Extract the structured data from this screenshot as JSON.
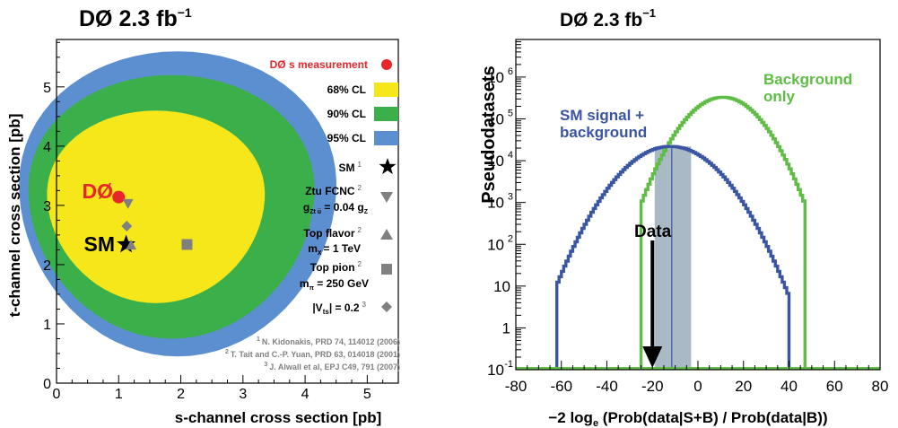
{
  "chart_data": [
    {
      "type": "scatter",
      "title": "DØ   2.3 fb⁻¹",
      "title_main": "DØ   2.3 fb",
      "title_sup": "−1",
      "xlabel": "s-channel cross section [pb]",
      "ylabel": "t-channel cross section [pb]",
      "xlim": [
        0,
        5.5
      ],
      "ylim": [
        0,
        5.8
      ],
      "xticks": [
        "0",
        "1",
        "2",
        "3",
        "4",
        "5"
      ],
      "yticks": [
        "0",
        "1",
        "2",
        "3",
        "4",
        "5"
      ],
      "contours": [
        {
          "name": "95% CL",
          "color": "#5b8fd0",
          "center": [
            1.95,
            3.2
          ],
          "rx": 2.55,
          "ry_up": 2.4,
          "ry_down": 2.75
        },
        {
          "name": "90% CL",
          "color": "#3bb04a",
          "center": [
            1.85,
            3.15
          ],
          "rx": 2.3,
          "ry_up": 2.05,
          "ry_down": 2.4
        },
        {
          "name": "68% CL",
          "color": "#f6e71b",
          "center": [
            1.6,
            3.1
          ],
          "rx": 1.75,
          "ry_up": 1.5,
          "ry_down": 1.75
        }
      ],
      "points": [
        {
          "name": "DØ s measurement",
          "symbol": "circle",
          "color": "#e8262a",
          "x": 1.0,
          "y": 3.14
        },
        {
          "name": "SM",
          "symbol": "star",
          "color": "#000000",
          "x": 1.12,
          "y": 2.34
        },
        {
          "name": "Ztu FCNC",
          "symbol": "triangle-down",
          "color": "#808080",
          "x": 1.15,
          "y": 3.03
        },
        {
          "name": "Top flavor",
          "symbol": "triangle-up",
          "color": "#808080",
          "x": 1.2,
          "y": 2.33
        },
        {
          "name": "Top pion",
          "symbol": "square",
          "color": "#808080",
          "x": 2.1,
          "y": 2.34
        },
        {
          "name": "|Vts| = 0.2",
          "symbol": "diamond",
          "color": "#808080",
          "x": 1.13,
          "y": 2.65
        }
      ],
      "plot_labels": {
        "d0": "DØ",
        "sm": "SM"
      },
      "legend": {
        "d0_meas": "DØ s measurement",
        "cl68": "68% CL",
        "cl90": "90% CL",
        "cl95": "95% CL",
        "sm": "SM",
        "sm_ref": "1",
        "ztu": "Ztu FCNC",
        "ztu_ref": "2",
        "ztu_sub": "g",
        "ztu_sub_idx": "Zt u̅",
        "ztu_eq": " = 0.04 g",
        "ztu_eq_idx": "Z",
        "topflavor": "Top flavor",
        "topflavor_ref": "2",
        "topflavor_sub": "m",
        "topflavor_sub_idx": "X",
        "topflavor_eq": "= 1 TeV",
        "toppion": "Top pion",
        "toppion_ref": "2",
        "toppion_sub": "m",
        "toppion_sub_idx": "π",
        "toppion_eq": " = 250 GeV",
        "vts_pre": "|V",
        "vts_idx": "ts",
        "vts_post": "| = 0.2",
        "vts_ref": "3"
      },
      "references": [
        {
          "num": "1",
          "text": "N. Kidonakis, PRD 74, 114012 (2006)"
        },
        {
          "num": "2",
          "text": "T. Tait and C.-P. Yuan, PRD 63, 014018 (2001)"
        },
        {
          "num": "3",
          "text": "J. Alwall et al, EPJ C49, 791 (2007)"
        }
      ]
    },
    {
      "type": "line",
      "title": "DØ   2.3 fb⁻¹",
      "title_main": "DØ   2.3 fb",
      "title_sup": "−1",
      "xlabel_main": "−2 log",
      "xlabel_sub": "e",
      "xlabel_rest": " (Prob(data|S+B) / Prob(data|B))",
      "ylabel": "Pseudodatasets",
      "xlim": [
        -80,
        80
      ],
      "ylim_log10": [
        -1,
        6.9
      ],
      "y_scale": "log",
      "xticks": [
        "-80",
        "-60",
        "-40",
        "-20",
        "0",
        "20",
        "40",
        "60",
        "80"
      ],
      "ytick_labels": [
        {
          "base": "10",
          "exp": "-1",
          "log": -1
        },
        {
          "base": "1",
          "exp": "",
          "log": 0
        },
        {
          "base": "10",
          "exp": "",
          "log": 1
        },
        {
          "base": "10",
          "exp": "2",
          "log": 2
        },
        {
          "base": "10",
          "exp": "3",
          "log": 3
        },
        {
          "base": "10",
          "exp": "4",
          "log": 4
        },
        {
          "base": "10",
          "exp": "5",
          "log": 5
        },
        {
          "base": "10",
          "exp": "6",
          "log": 6
        }
      ],
      "series": [
        {
          "name": "SM signal + background",
          "color": "#3a55a4",
          "mean": -12,
          "peak": 22000,
          "sigma": 12.8,
          "xmin": -62,
          "xmax": 40
        },
        {
          "name": "Background only",
          "color": "#5fbd45",
          "mean": 11,
          "peak": 330000,
          "sigma": 10.5,
          "xmin": -25,
          "xmax": 47
        }
      ],
      "band": {
        "x": [
          -19,
          -3
        ],
        "color": "#a9b9c6"
      },
      "median_line_x": -11.5,
      "data_x": -20,
      "labels": {
        "sm_line1": "SM signal +",
        "sm_line2": "background",
        "bg_line1": "Background",
        "bg_line2": "only",
        "data": "Data"
      }
    }
  ]
}
